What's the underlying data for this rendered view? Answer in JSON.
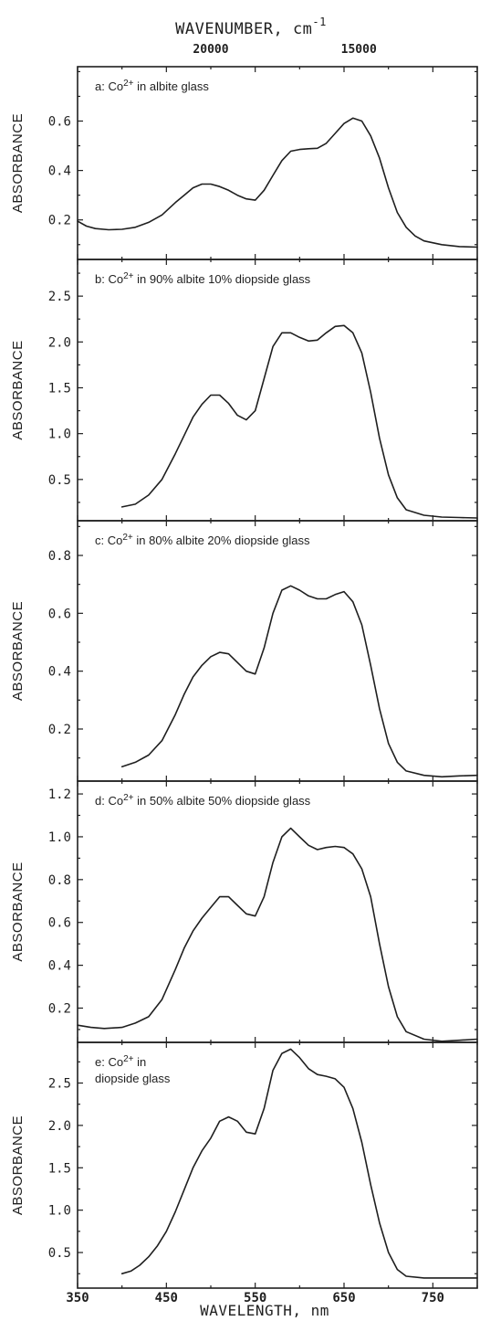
{
  "top_axis": {
    "label_main": "WAVENUMBER, cm",
    "label_exp": "-1",
    "ticks": [
      {
        "value": 20000,
        "label": "20000"
      },
      {
        "value": 15000,
        "label": "15000"
      }
    ]
  },
  "bottom_axis": {
    "label": "WAVELENGTH, nm",
    "ticks": [
      {
        "value": 350,
        "label": "350"
      },
      {
        "value": 450,
        "label": "450"
      },
      {
        "value": 550,
        "label": "550"
      },
      {
        "value": 650,
        "label": "650"
      },
      {
        "value": 750,
        "label": "750"
      }
    ]
  },
  "chart_data": [
    {
      "type": "line",
      "panel": "a",
      "annotation": {
        "prefix": "a:",
        "ion": "Co",
        "charge": "2+",
        "rest_line1": " in albite glass",
        "rest_line2": ""
      },
      "ylabel": "ABSORBANCE",
      "xlim": [
        350,
        800
      ],
      "ylim": [
        0.04,
        0.82
      ],
      "yticks": [
        {
          "value": 0.2,
          "label": "0.2"
        },
        {
          "value": 0.4,
          "label": "0.4"
        },
        {
          "value": 0.6,
          "label": "0.6"
        }
      ],
      "x": [
        350,
        360,
        370,
        385,
        400,
        415,
        430,
        445,
        460,
        470,
        480,
        490,
        500,
        510,
        520,
        530,
        540,
        550,
        560,
        570,
        580,
        590,
        600,
        610,
        620,
        630,
        640,
        650,
        660,
        670,
        680,
        690,
        700,
        710,
        720,
        730,
        740,
        760,
        780,
        800
      ],
      "y": [
        0.195,
        0.175,
        0.165,
        0.16,
        0.162,
        0.17,
        0.19,
        0.22,
        0.27,
        0.3,
        0.33,
        0.345,
        0.345,
        0.335,
        0.32,
        0.3,
        0.285,
        0.28,
        0.32,
        0.38,
        0.44,
        0.478,
        0.485,
        0.488,
        0.49,
        0.51,
        0.55,
        0.59,
        0.612,
        0.6,
        0.54,
        0.45,
        0.33,
        0.23,
        0.17,
        0.135,
        0.115,
        0.1,
        0.092,
        0.09
      ]
    },
    {
      "type": "line",
      "panel": "b",
      "annotation": {
        "prefix": "b:",
        "ion": "Co",
        "charge": "2+",
        "rest_line1": " in 90% albite 10% diopside glass",
        "rest_line2": ""
      },
      "ylabel": "ABSORBANCE",
      "xlim": [
        350,
        800
      ],
      "ylim": [
        0.05,
        2.9
      ],
      "yticks": [
        {
          "value": 0.5,
          "label": "0.5"
        },
        {
          "value": 1.0,
          "label": "1.0"
        },
        {
          "value": 1.5,
          "label": "1.5"
        },
        {
          "value": 2.0,
          "label": "2.0"
        },
        {
          "value": 2.5,
          "label": "2.5"
        }
      ],
      "x": [
        400,
        415,
        430,
        445,
        460,
        470,
        480,
        490,
        500,
        510,
        520,
        530,
        540,
        550,
        560,
        570,
        580,
        590,
        600,
        610,
        620,
        630,
        640,
        650,
        660,
        670,
        680,
        690,
        700,
        710,
        720,
        740,
        760,
        780,
        800
      ],
      "y": [
        0.2,
        0.23,
        0.33,
        0.5,
        0.78,
        0.98,
        1.18,
        1.32,
        1.42,
        1.42,
        1.33,
        1.2,
        1.15,
        1.25,
        1.6,
        1.95,
        2.1,
        2.1,
        2.05,
        2.01,
        2.02,
        2.1,
        2.17,
        2.18,
        2.1,
        1.88,
        1.45,
        0.95,
        0.55,
        0.3,
        0.17,
        0.11,
        0.09,
        0.085,
        0.08
      ]
    },
    {
      "type": "line",
      "panel": "c",
      "annotation": {
        "prefix": "c:",
        "ion": "Co",
        "charge": "2+",
        "rest_line1": " in 80% albite 20% diopside glass",
        "rest_line2": ""
      },
      "ylabel": "ABSORBANCE",
      "xlim": [
        350,
        800
      ],
      "ylim": [
        0.02,
        0.92
      ],
      "yticks": [
        {
          "value": 0.2,
          "label": "0.2"
        },
        {
          "value": 0.4,
          "label": "0.4"
        },
        {
          "value": 0.6,
          "label": "0.6"
        },
        {
          "value": 0.8,
          "label": "0.8"
        }
      ],
      "x": [
        400,
        415,
        430,
        445,
        460,
        470,
        480,
        490,
        500,
        510,
        520,
        530,
        540,
        550,
        560,
        570,
        580,
        590,
        600,
        610,
        620,
        630,
        640,
        650,
        660,
        670,
        680,
        690,
        700,
        710,
        720,
        740,
        760,
        780,
        800
      ],
      "y": [
        0.07,
        0.085,
        0.11,
        0.16,
        0.25,
        0.32,
        0.38,
        0.42,
        0.45,
        0.465,
        0.46,
        0.43,
        0.4,
        0.39,
        0.48,
        0.6,
        0.68,
        0.695,
        0.68,
        0.66,
        0.65,
        0.65,
        0.665,
        0.675,
        0.64,
        0.56,
        0.42,
        0.27,
        0.15,
        0.085,
        0.055,
        0.04,
        0.035,
        0.038,
        0.04
      ]
    },
    {
      "type": "line",
      "panel": "d",
      "annotation": {
        "prefix": "d:",
        "ion": "Co",
        "charge": "2+",
        "rest_line1": " in 50% albite 50% diopside glass",
        "rest_line2": ""
      },
      "ylabel": "ABSORBANCE",
      "xlim": [
        350,
        800
      ],
      "ylim": [
        0.04,
        1.26
      ],
      "yticks": [
        {
          "value": 0.2,
          "label": "0.2"
        },
        {
          "value": 0.4,
          "label": "0.4"
        },
        {
          "value": 0.6,
          "label": "0.6"
        },
        {
          "value": 0.8,
          "label": "0.8"
        },
        {
          "value": 1.0,
          "label": "1.0"
        },
        {
          "value": 1.2,
          "label": "1.2"
        }
      ],
      "x": [
        350,
        365,
        380,
        400,
        415,
        430,
        445,
        460,
        470,
        480,
        490,
        500,
        510,
        520,
        530,
        540,
        550,
        560,
        570,
        580,
        590,
        600,
        610,
        620,
        630,
        640,
        650,
        660,
        670,
        680,
        690,
        700,
        710,
        720,
        740,
        760,
        780,
        800
      ],
      "y": [
        0.12,
        0.11,
        0.105,
        0.11,
        0.13,
        0.16,
        0.24,
        0.38,
        0.48,
        0.56,
        0.62,
        0.67,
        0.72,
        0.72,
        0.68,
        0.64,
        0.63,
        0.72,
        0.88,
        1.0,
        1.04,
        1.0,
        0.96,
        0.94,
        0.95,
        0.955,
        0.95,
        0.92,
        0.85,
        0.72,
        0.5,
        0.3,
        0.16,
        0.09,
        0.055,
        0.045,
        0.05,
        0.055
      ]
    },
    {
      "type": "line",
      "panel": "e",
      "annotation": {
        "prefix": "e:",
        "ion": "Co",
        "charge": "2+",
        "rest_line1": " in",
        "rest_line2": "diopside glass"
      },
      "ylabel": "ABSORBANCE",
      "xlim": [
        350,
        800
      ],
      "ylim": [
        0.08,
        2.98
      ],
      "yticks": [
        {
          "value": 0.5,
          "label": "0.5"
        },
        {
          "value": 1.0,
          "label": "1.0"
        },
        {
          "value": 1.5,
          "label": "1.5"
        },
        {
          "value": 2.0,
          "label": "2.0"
        },
        {
          "value": 2.5,
          "label": "2.5"
        }
      ],
      "x": [
        400,
        410,
        420,
        430,
        440,
        450,
        460,
        470,
        480,
        490,
        500,
        510,
        520,
        530,
        540,
        550,
        560,
        570,
        580,
        590,
        600,
        610,
        620,
        630,
        640,
        650,
        660,
        670,
        680,
        690,
        700,
        710,
        720,
        740,
        760,
        780,
        800
      ],
      "y": [
        0.25,
        0.28,
        0.35,
        0.45,
        0.58,
        0.75,
        0.98,
        1.24,
        1.5,
        1.7,
        1.85,
        2.05,
        2.1,
        2.05,
        1.92,
        1.9,
        2.2,
        2.65,
        2.85,
        2.9,
        2.8,
        2.67,
        2.6,
        2.58,
        2.55,
        2.45,
        2.2,
        1.8,
        1.3,
        0.85,
        0.5,
        0.3,
        0.22,
        0.2,
        0.2,
        0.2,
        0.2
      ]
    }
  ]
}
